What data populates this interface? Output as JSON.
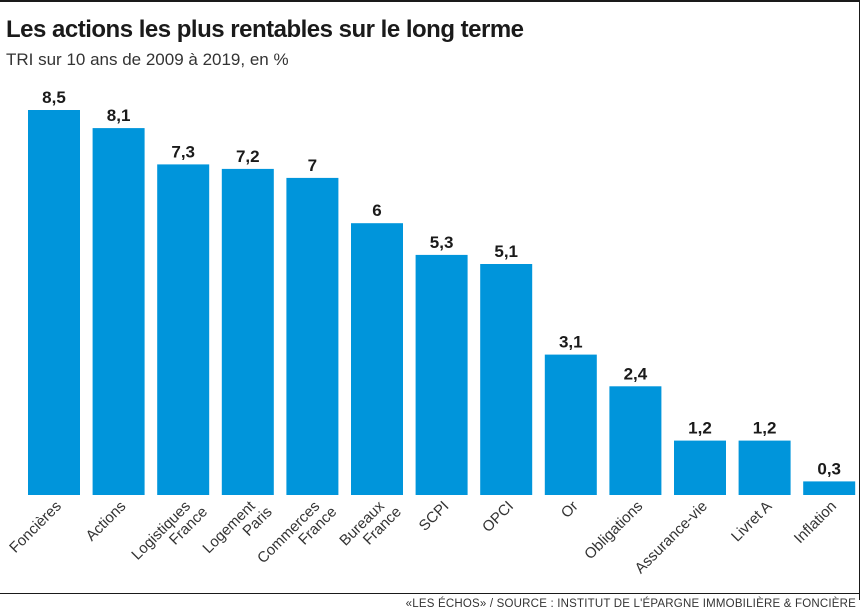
{
  "header": {
    "title": "Les actions les plus rentables sur le long terme",
    "subtitle": "TRI sur 10 ans de 2009 à 2019, en %"
  },
  "footer": {
    "source": "«LES ÉCHOS» / SOURCE : INSTITUT DE L'ÉPARGNE IMMOBILIÈRE & FONCIÈRE"
  },
  "colors": {
    "bar": "#0095db",
    "text": "#1a1a1a"
  },
  "chart_data": {
    "type": "bar",
    "title": "Les actions les plus rentables sur le long terme",
    "subtitle": "TRI sur 10 ans de 2009 à 2019, en %",
    "categories": [
      [
        "Foncières"
      ],
      [
        "Actions"
      ],
      [
        "Logistiques",
        "France"
      ],
      [
        "Logement",
        "Paris"
      ],
      [
        "Commerces",
        "France"
      ],
      [
        "Bureaux",
        "France"
      ],
      [
        "SCPI"
      ],
      [
        "OPCI"
      ],
      [
        "Or"
      ],
      [
        "Obligations"
      ],
      [
        "Assurance-vie"
      ],
      [
        "Livret A"
      ],
      [
        "Inflation"
      ]
    ],
    "values": [
      8.5,
      8.1,
      7.3,
      7.2,
      7,
      6,
      5.3,
      5.1,
      3.1,
      2.4,
      1.2,
      1.2,
      0.3
    ],
    "value_labels": [
      "8,5",
      "8,1",
      "7,3",
      "7,2",
      "7",
      "6",
      "5,3",
      "5,1",
      "3,1",
      "2,4",
      "1,2",
      "1,2",
      "0,3"
    ],
    "xlabel": "",
    "ylabel": "",
    "ylim": [
      0,
      8.5
    ],
    "grid": false,
    "legend": "none"
  }
}
